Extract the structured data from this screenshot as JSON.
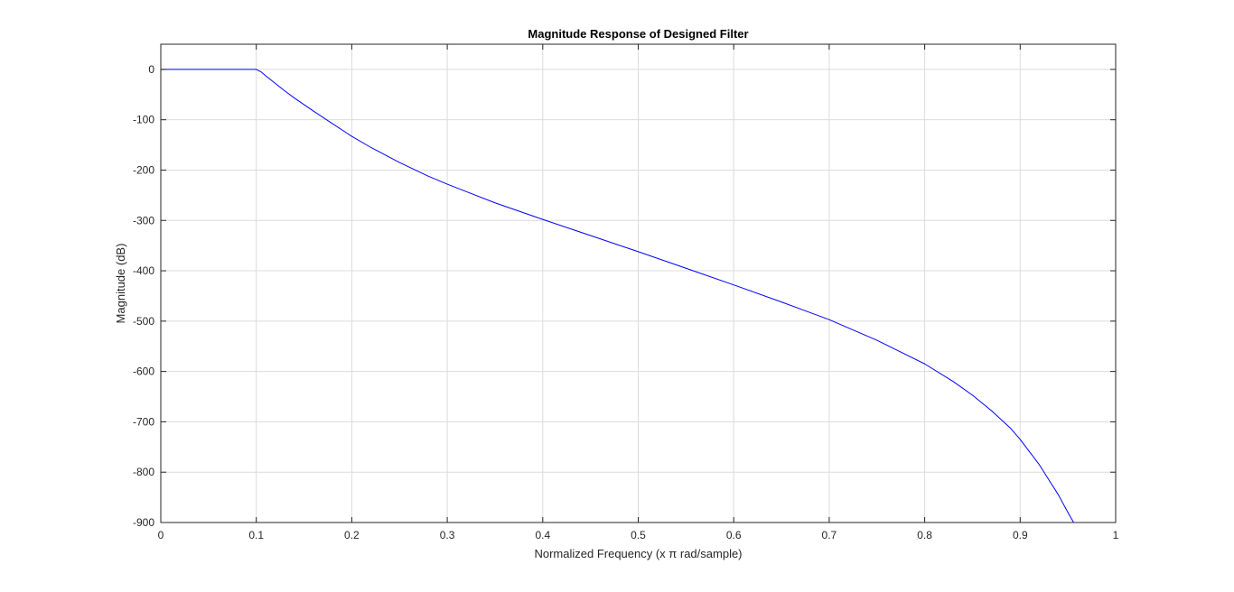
{
  "chart_data": {
    "type": "line",
    "title": "Magnitude Response of Designed Filter",
    "xlabel": "Normalized Frequency (x π rad/sample)",
    "ylabel": "Magnitude (dB)",
    "xlim": [
      0,
      1
    ],
    "ylim": [
      -900,
      50
    ],
    "x_ticks": [
      0,
      0.1,
      0.2,
      0.3,
      0.4,
      0.5,
      0.6,
      0.7,
      0.8,
      0.9,
      1
    ],
    "x_tick_labels": [
      "0",
      "0.1",
      "0.2",
      "0.3",
      "0.4",
      "0.5",
      "0.6",
      "0.7",
      "0.8",
      "0.9",
      "1"
    ],
    "y_ticks": [
      0,
      -100,
      -200,
      -300,
      -400,
      -500,
      -600,
      -700,
      -800,
      -900
    ],
    "y_tick_labels": [
      "0",
      "-100",
      "-200",
      "-300",
      "-400",
      "-500",
      "-600",
      "-700",
      "-800",
      "-900"
    ],
    "grid": true,
    "box": true,
    "series": [
      {
        "color": "#0000ff",
        "x": [
          0,
          0.02,
          0.04,
          0.06,
          0.08,
          0.095,
          0.1,
          0.105,
          0.11,
          0.12,
          0.13,
          0.14,
          0.15,
          0.16,
          0.18,
          0.2,
          0.22,
          0.25,
          0.28,
          0.3,
          0.35,
          0.4,
          0.45,
          0.5,
          0.55,
          0.6,
          0.65,
          0.7,
          0.75,
          0.8,
          0.83,
          0.85,
          0.87,
          0.89,
          0.9,
          0.91,
          0.92,
          0.93,
          0.94,
          0.95,
          0.956
        ],
        "y": [
          0,
          0,
          0,
          0,
          0,
          0,
          0,
          -5,
          -13,
          -28,
          -43,
          -57,
          -70,
          -83,
          -108,
          -133,
          -155,
          -185,
          -212,
          -228,
          -265,
          -298,
          -330,
          -362,
          -395,
          -428,
          -462,
          -497,
          -538,
          -585,
          -620,
          -647,
          -678,
          -713,
          -735,
          -760,
          -785,
          -815,
          -845,
          -880,
          -900
        ]
      }
    ]
  }
}
